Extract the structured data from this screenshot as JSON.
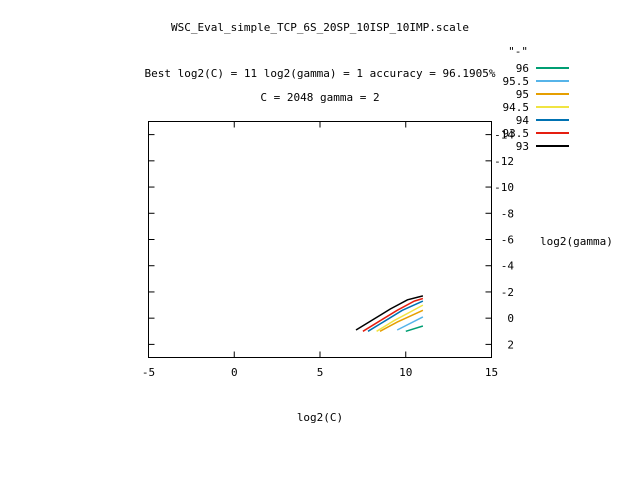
{
  "chart_data": {
    "type": "line",
    "title": "WSC_Eval_simple_TCP_6S_20SP_10ISP_10IMP.scale",
    "subtitle_1": "Best log2(C) = 11  log2(gamma) = 1  accuracy = 96.1905%",
    "subtitle_2": "C = 2048  gamma = 2",
    "xlabel": "log2(C)",
    "ylabel": "log2(gamma)",
    "xlim": [
      -5,
      15
    ],
    "ylim": [
      3,
      -15
    ],
    "y_axis_side": "right",
    "grid": false,
    "legend_title": "\"-\"",
    "legend_placement": "top-right",
    "x_ticks": [
      {
        "value": -5,
        "label": "-5"
      },
      {
        "value": 0,
        "label": "0"
      },
      {
        "value": 5,
        "label": "5"
      },
      {
        "value": 10,
        "label": "10"
      },
      {
        "value": 15,
        "label": "15"
      }
    ],
    "y_ticks": [
      {
        "value": -14,
        "label": "-14"
      },
      {
        "value": -12,
        "label": "-12"
      },
      {
        "value": -10,
        "label": "-10"
      },
      {
        "value": -8,
        "label": "-8"
      },
      {
        "value": -6,
        "label": "-6"
      },
      {
        "value": -4,
        "label": "-4"
      },
      {
        "value": -2,
        "label": "-2"
      },
      {
        "value": 0,
        "label": "0"
      },
      {
        "value": 2,
        "label": "2"
      }
    ],
    "series": [
      {
        "name": "96",
        "color": "#009e73",
        "points": [
          [
            10.0,
            1.0
          ],
          [
            11.0,
            0.6
          ]
        ]
      },
      {
        "name": "95.5",
        "color": "#56b4e9",
        "points": [
          [
            9.5,
            0.9
          ],
          [
            11.0,
            -0.1
          ]
        ]
      },
      {
        "name": "95",
        "color": "#e69f00",
        "points": [
          [
            8.5,
            1.0
          ],
          [
            9.5,
            0.3
          ],
          [
            11.0,
            -0.6
          ]
        ]
      },
      {
        "name": "94.5",
        "color": "#f0e442",
        "points": [
          [
            8.3,
            1.0
          ],
          [
            9.3,
            0.2
          ],
          [
            10.3,
            -0.5
          ],
          [
            11.0,
            -1.0
          ]
        ]
      },
      {
        "name": "94",
        "color": "#0072b2",
        "points": [
          [
            7.8,
            1.0
          ],
          [
            8.8,
            0.2
          ],
          [
            9.8,
            -0.6
          ],
          [
            11.0,
            -1.3
          ]
        ]
      },
      {
        "name": "93.5",
        "color": "#e51e10",
        "points": [
          [
            7.5,
            1.0
          ],
          [
            8.5,
            0.2
          ],
          [
            9.5,
            -0.6
          ],
          [
            10.5,
            -1.3
          ],
          [
            11.0,
            -1.5
          ]
        ]
      },
      {
        "name": "93",
        "color": "#000000",
        "points": [
          [
            7.1,
            0.9
          ],
          [
            8.1,
            0.1
          ],
          [
            9.1,
            -0.7
          ],
          [
            10.1,
            -1.4
          ],
          [
            11.0,
            -1.7
          ]
        ]
      }
    ]
  }
}
